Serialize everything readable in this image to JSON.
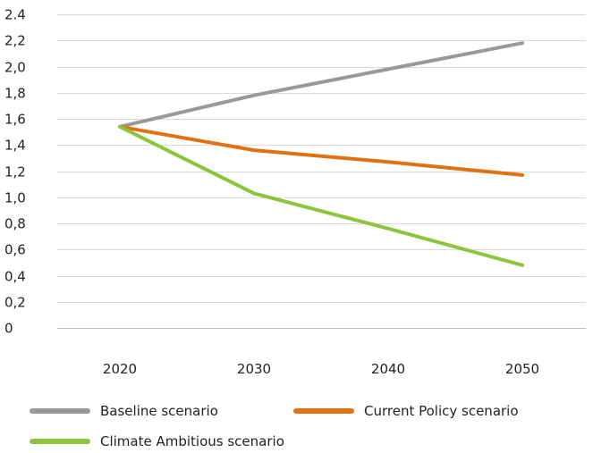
{
  "chart_data": {
    "type": "line",
    "title": "",
    "xlabel": "",
    "ylabel": "",
    "categories": [
      "2020",
      "2030",
      "2040",
      "2050"
    ],
    "ylim": [
      0,
      2.4
    ],
    "y_ticks": [
      "0",
      "0,2",
      "0,4",
      "0,6",
      "0,8",
      "1,0",
      "1,2",
      "1,4",
      "1,6",
      "1,8",
      "2,0",
      "2,2",
      "2.4"
    ],
    "grid": true,
    "legend_position": "bottom",
    "series": [
      {
        "name": "Baseline scenario",
        "color": "#999999",
        "values": [
          1.54,
          1.78,
          1.98,
          2.18
        ]
      },
      {
        "name": "Current Policy scenario",
        "color": "#e07010",
        "values": [
          1.54,
          1.36,
          1.27,
          1.17
        ]
      },
      {
        "name": "Climate Ambitious scenario",
        "color": "#8cc43c",
        "values": [
          1.54,
          1.03,
          0.76,
          0.48
        ]
      }
    ]
  }
}
